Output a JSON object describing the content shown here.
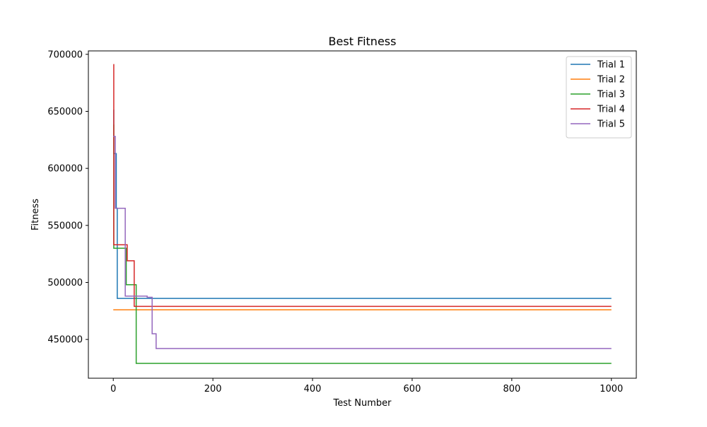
{
  "chart_data": {
    "type": "line",
    "title": "Best Fitness",
    "xlabel": "Test Number",
    "ylabel": "Fitness",
    "xlim": [
      -50,
      1050
    ],
    "ylim": [
      416000,
      703000
    ],
    "xticks": [
      0,
      200,
      400,
      600,
      800,
      1000
    ],
    "yticks": [
      450000,
      500000,
      550000,
      600000,
      650000,
      700000
    ],
    "grid": false,
    "legend": "top-right",
    "series": [
      {
        "name": "Trial 1",
        "color": "#1f77b4",
        "points": [
          [
            0,
            651000
          ],
          [
            1,
            651000
          ],
          [
            1,
            613000
          ],
          [
            6,
            613000
          ],
          [
            6,
            565000
          ],
          [
            8,
            565000
          ],
          [
            8,
            486000
          ],
          [
            1000,
            486000
          ]
        ]
      },
      {
        "name": "Trial 2",
        "color": "#ff7f0e",
        "points": [
          [
            0,
            476000
          ],
          [
            1000,
            476000
          ]
        ]
      },
      {
        "name": "Trial 3",
        "color": "#2ca02c",
        "points": [
          [
            0,
            638000
          ],
          [
            1,
            638000
          ],
          [
            1,
            530000
          ],
          [
            26,
            530000
          ],
          [
            26,
            498000
          ],
          [
            46,
            498000
          ],
          [
            46,
            429000
          ],
          [
            1000,
            429000
          ]
        ]
      },
      {
        "name": "Trial 4",
        "color": "#d62728",
        "points": [
          [
            0,
            691000
          ],
          [
            1,
            691000
          ],
          [
            1,
            533000
          ],
          [
            28,
            533000
          ],
          [
            28,
            519000
          ],
          [
            42,
            519000
          ],
          [
            42,
            479000
          ],
          [
            1000,
            479000
          ]
        ]
      },
      {
        "name": "Trial 5",
        "color": "#9467bd",
        "points": [
          [
            0,
            628000
          ],
          [
            4,
            628000
          ],
          [
            4,
            565000
          ],
          [
            24,
            565000
          ],
          [
            24,
            488000
          ],
          [
            68,
            488000
          ],
          [
            68,
            487000
          ],
          [
            78,
            487000
          ],
          [
            78,
            455000
          ],
          [
            86,
            455000
          ],
          [
            86,
            442000
          ],
          [
            1000,
            442000
          ]
        ]
      }
    ]
  }
}
